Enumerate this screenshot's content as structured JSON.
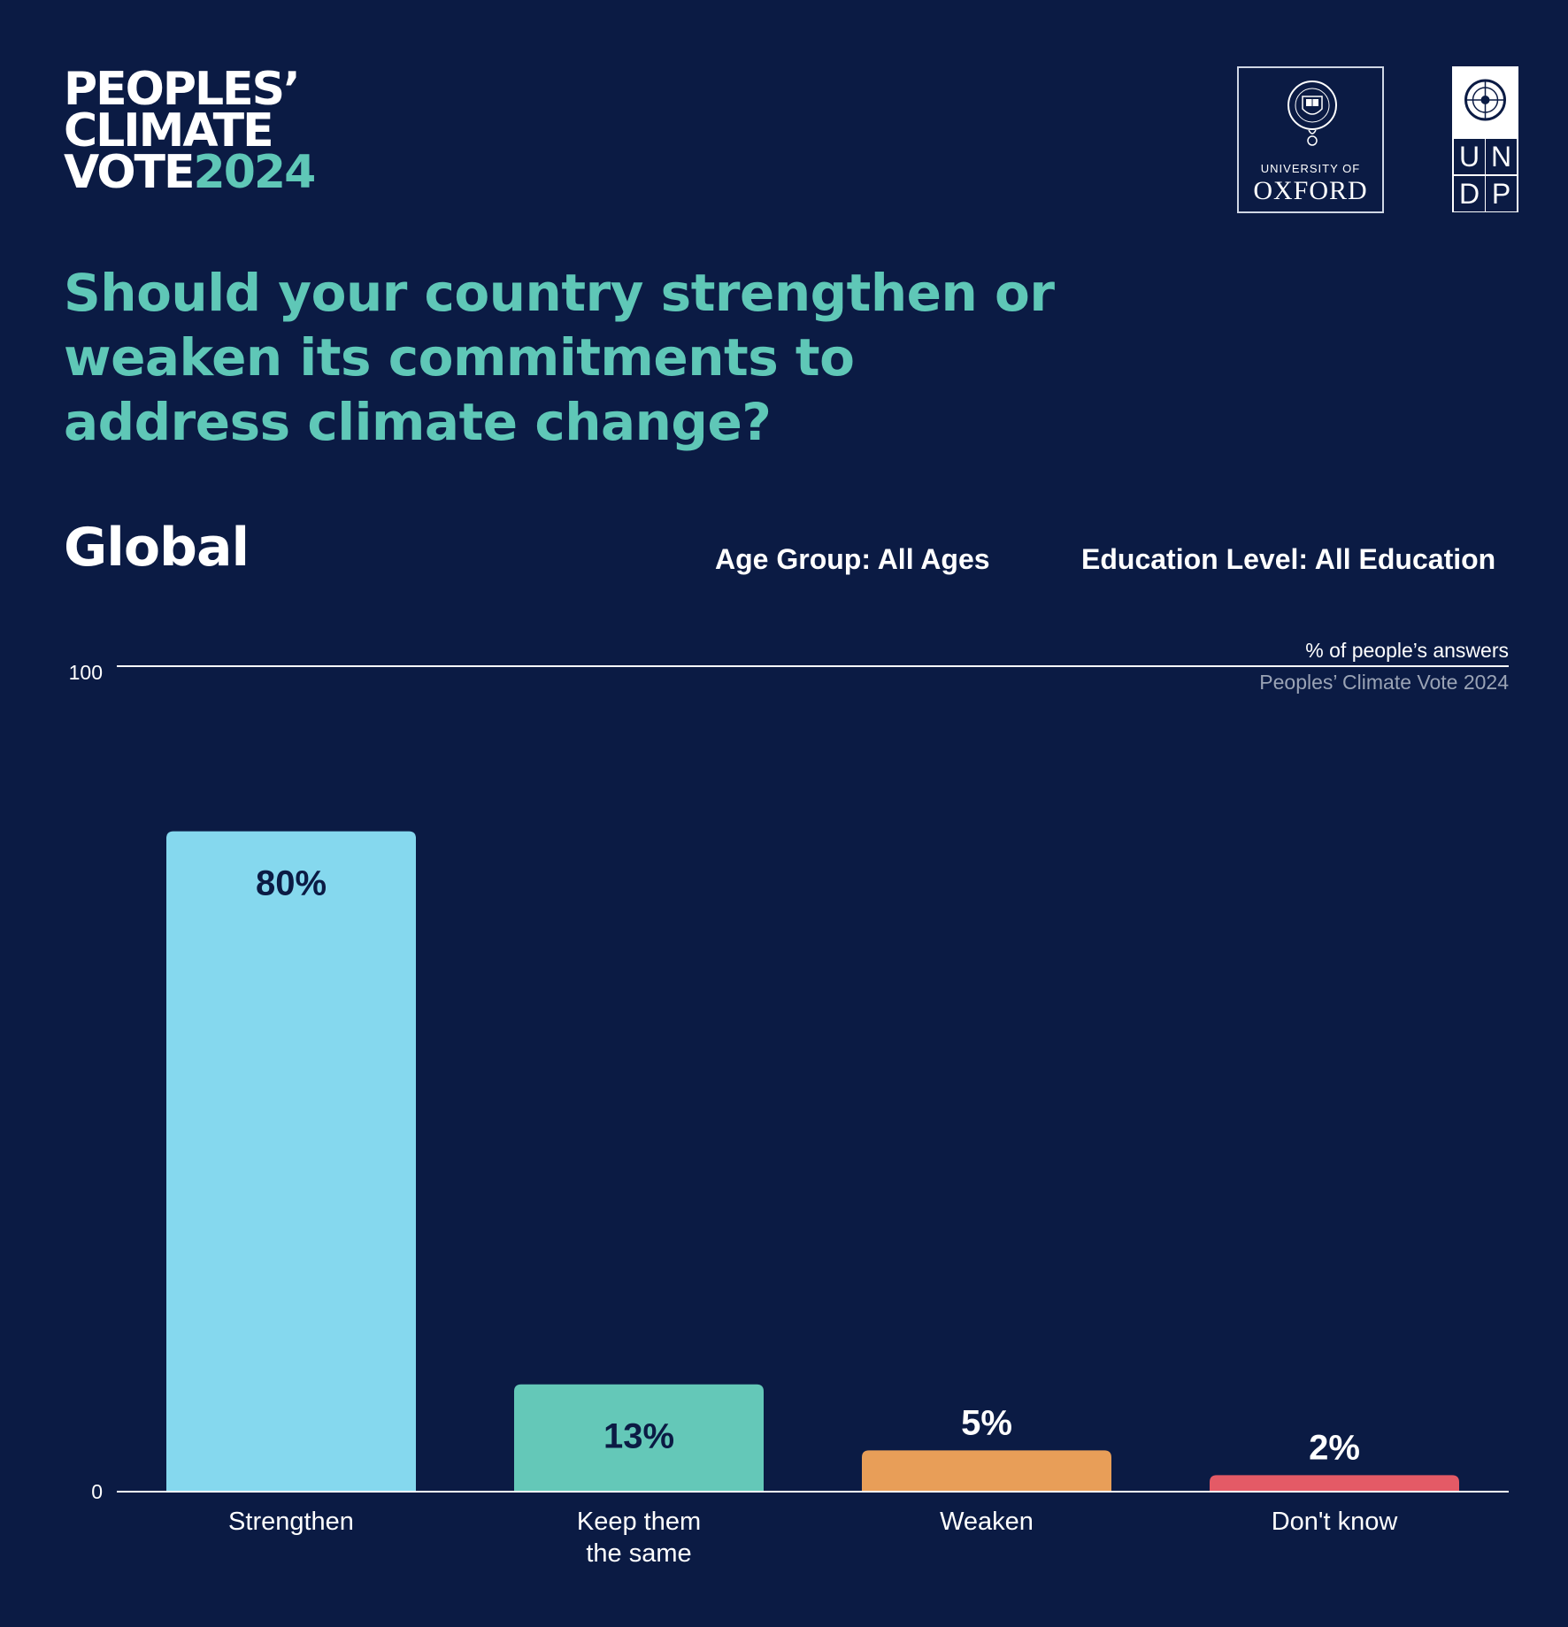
{
  "header": {
    "brand_lines": [
      "PEOPLES’",
      "CLIMATE",
      "VOTE"
    ],
    "brand_year": "2024",
    "oxford_small": "UNIVERSITY OF",
    "oxford_big": "OXFORD",
    "undp_letters": [
      "U",
      "N",
      "D",
      "P"
    ]
  },
  "question": "Should your country strengthen or weaken its commitments to address climate change?",
  "region": "Global",
  "filters": {
    "age": "Age Group: All Ages",
    "education": "Education Level: All Education"
  },
  "colors": {
    "background": "#0b1b44",
    "accent": "#5fc7b7"
  },
  "chart_data": {
    "type": "bar",
    "categories": [
      "Strengthen",
      "Keep them the same",
      "Weaken",
      "Don't know"
    ],
    "category_lines": [
      [
        "Strengthen"
      ],
      [
        "Keep them",
        "the same"
      ],
      [
        "Weaken"
      ],
      [
        "Don't know"
      ]
    ],
    "values": [
      80,
      13,
      5,
      2
    ],
    "data_labels": [
      "80%",
      "13%",
      "5%",
      "2%"
    ],
    "colors": [
      "#85d8ee",
      "#64c8b8",
      "#e89e58",
      "#e45a66"
    ],
    "ylim": [
      0,
      100
    ],
    "y_ticks": [
      "0",
      "100"
    ],
    "ylabel": "% of people’s answers",
    "source": "Peoples’ Climate Vote 2024",
    "grid": false
  }
}
